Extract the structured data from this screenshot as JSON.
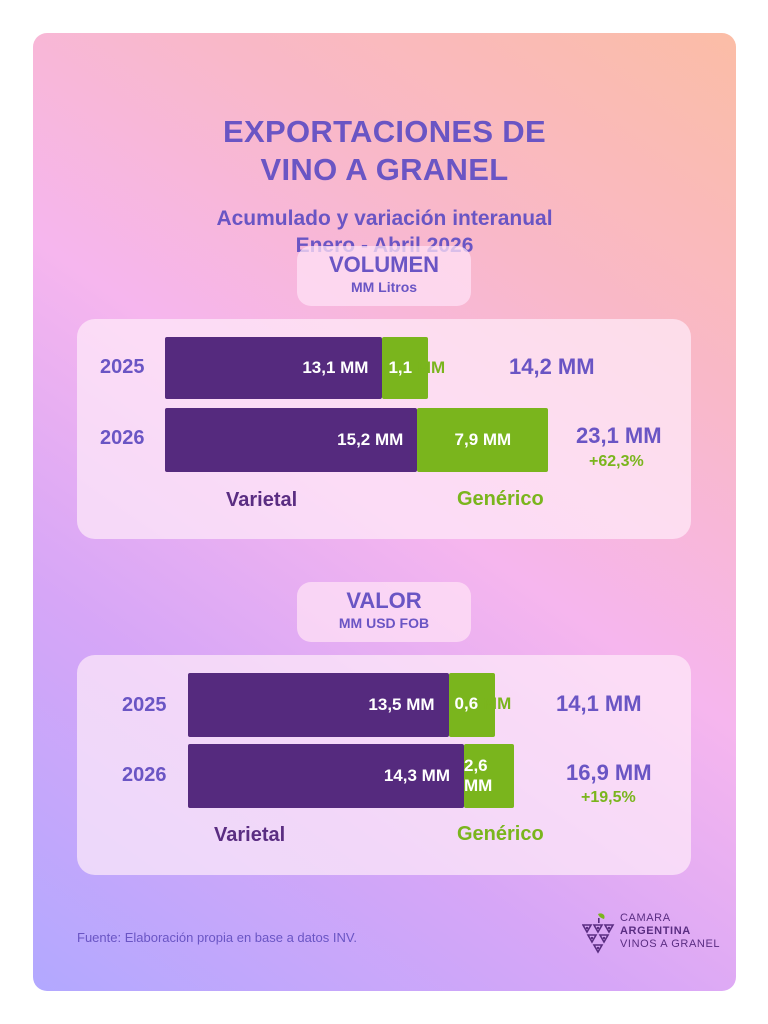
{
  "title_line1": "EXPORTACIONES DE",
  "title_line2": "VINO A GRANEL",
  "subtitle_line1": "Acumulado y variación interanual",
  "subtitle_line2": "Enero - Abril 2026",
  "colors": {
    "varietal": "#552a7e",
    "generico": "#7ab51d",
    "accent_text": "#6a55c4"
  },
  "chart_data": [
    {
      "type": "bar",
      "orientation": "horizontal",
      "stacked": true,
      "title": "VOLUMEN",
      "unit": "MM Litros",
      "categories": [
        "2025",
        "2026"
      ],
      "series": [
        {
          "name": "Varietal",
          "values": [
            13.1,
            15.2
          ],
          "labels": [
            "13,1 MM",
            "15,2 MM"
          ]
        },
        {
          "name": "Genérico",
          "values": [
            1.1,
            7.9
          ],
          "labels": [
            "1,1 MM",
            "7,9 MM"
          ]
        }
      ],
      "totals": [
        "14,2 MM",
        "23,1 MM"
      ],
      "variation": "+62,3%"
    },
    {
      "type": "bar",
      "orientation": "horizontal",
      "stacked": true,
      "title": "VALOR",
      "unit": "MM USD FOB",
      "categories": [
        "2025",
        "2026"
      ],
      "series": [
        {
          "name": "Varietal",
          "values": [
            13.5,
            14.3
          ],
          "labels": [
            "13,5 MM",
            "14,3 MM"
          ]
        },
        {
          "name": "Genérico",
          "values": [
            0.6,
            2.6
          ],
          "labels": [
            "0,6 MM",
            "2,6 MM"
          ]
        }
      ],
      "totals": [
        "14,1 MM",
        "16,9 MM"
      ],
      "variation": "+19,5%"
    }
  ],
  "labels": {
    "gen_vol_2025_num": "1,1",
    "gen_vol_2025_unit": "MM",
    "gen_val_2025_num": "0,6",
    "gen_val_2025_unit": "MM"
  },
  "source": "Fuente: Elaboración propia en base a datos INV.",
  "logo": {
    "line1": "CAMARA",
    "line2": "ARGENTINA",
    "line3": "VINOS A GRANEL"
  }
}
